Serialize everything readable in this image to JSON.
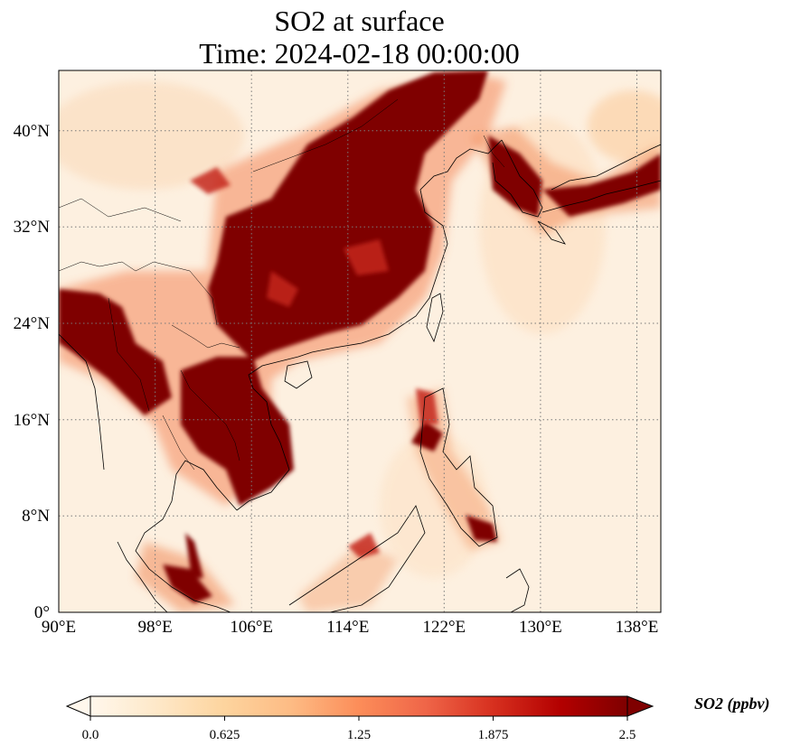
{
  "title": {
    "line1": "SO2 at surface",
    "line2": "Time: 2024-02-18 00:00:00"
  },
  "map": {
    "lon_range": [
      90,
      140
    ],
    "lat_range": [
      0,
      45
    ],
    "lon_ticks": [
      "90°E",
      "98°E",
      "106°E",
      "114°E",
      "122°E",
      "130°E",
      "138°E"
    ],
    "lat_ticks": [
      "0°",
      "8°N",
      "16°N",
      "24°N",
      "32°N",
      "40°N"
    ],
    "gridlines": "dotted",
    "coastlines": true,
    "country_borders": true
  },
  "colorbar": {
    "label": "SO2 (ppbv)",
    "ticks": [
      "0.0",
      "0.625",
      "1.25",
      "1.875",
      "2.5"
    ],
    "range": [
      0,
      2.5
    ],
    "extend": "both",
    "colormap": "OrRd",
    "colors": [
      "#fff7ec",
      "#fee8c8",
      "#fdd49e",
      "#fdbb84",
      "#fc8d59",
      "#ef6548",
      "#d7301f",
      "#b30000",
      "#7f0000"
    ]
  }
}
